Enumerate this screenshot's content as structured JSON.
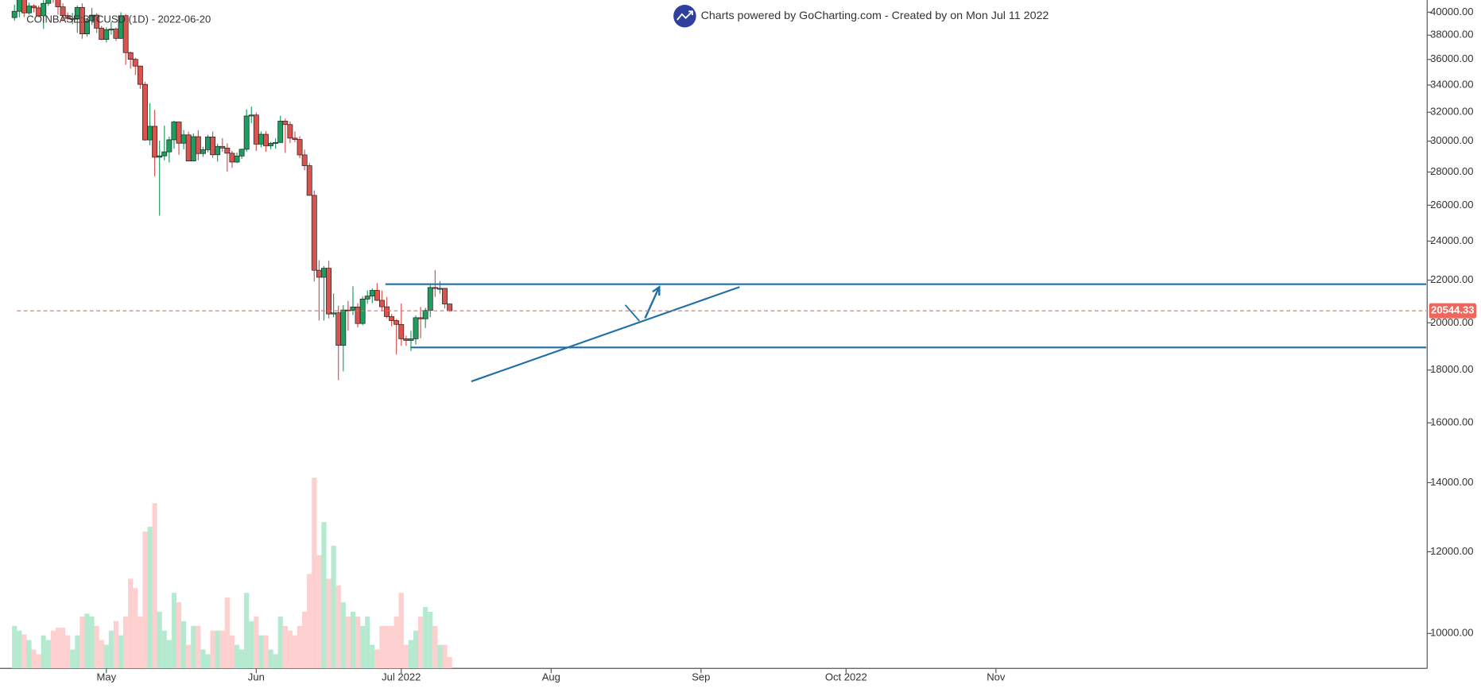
{
  "chart_data": {
    "type": "candlestick",
    "title": "Charts powered by GoCharting.com - Created by  on Mon Jul 11 2022",
    "subtitle": "COINBASE:BTCUSD (1D) - 2022-06-20",
    "up_color": "#1d9e60",
    "down_color": "#d9534f",
    "volume_up_color": "#b5ead0",
    "volume_down_color": "#fdcfcf",
    "log_scale": true,
    "ylim": [
      9250,
      41100
    ],
    "yticks": [
      {
        "value": 10000,
        "label": "10000.00"
      },
      {
        "value": 12000,
        "label": "12000.00"
      },
      {
        "value": 14000,
        "label": "14000.00"
      },
      {
        "value": 16000,
        "label": "16000.00"
      },
      {
        "value": 18000,
        "label": "18000.00"
      },
      {
        "value": 20000,
        "label": "20000.00"
      },
      {
        "value": 22000,
        "label": "22000.00"
      },
      {
        "value": 24000,
        "label": "24000.00"
      },
      {
        "value": 26000,
        "label": "26000.00"
      },
      {
        "value": 28000,
        "label": "28000.00"
      },
      {
        "value": 30000,
        "label": "30000.00"
      },
      {
        "value": 32000,
        "label": "32000.00"
      },
      {
        "value": 34000,
        "label": "34000.00"
      },
      {
        "value": 36000,
        "label": "36000.00"
      },
      {
        "value": 38000,
        "label": "38000.00"
      },
      {
        "value": 40000,
        "label": "40000.00"
      }
    ],
    "xlim": [
      "2022-04-09",
      "2023-01-29"
    ],
    "xticks": [
      {
        "value": "2022-05-01",
        "label": "May"
      },
      {
        "value": "2022-06-01",
        "label": "Jun"
      },
      {
        "value": "2022-07-01",
        "label": "Jul 2022"
      },
      {
        "value": "2022-08-01",
        "label": "Aug"
      },
      {
        "value": "2022-09-01",
        "label": "Sep"
      },
      {
        "value": "2022-10-01",
        "label": "Oct 2022"
      },
      {
        "value": "2022-11-01",
        "label": "Nov"
      }
    ],
    "last_price": 20544.33,
    "x": [
      "2022-04-12",
      "2022-04-13",
      "2022-04-14",
      "2022-04-15",
      "2022-04-16",
      "2022-04-17",
      "2022-04-18",
      "2022-04-19",
      "2022-04-20",
      "2022-04-21",
      "2022-04-22",
      "2022-04-23",
      "2022-04-24",
      "2022-04-25",
      "2022-04-26",
      "2022-04-27",
      "2022-04-28",
      "2022-04-29",
      "2022-04-30",
      "2022-05-01",
      "2022-05-02",
      "2022-05-03",
      "2022-05-04",
      "2022-05-05",
      "2022-05-06",
      "2022-05-07",
      "2022-05-08",
      "2022-05-09",
      "2022-05-10",
      "2022-05-11",
      "2022-05-12",
      "2022-05-13",
      "2022-05-14",
      "2022-05-15",
      "2022-05-16",
      "2022-05-17",
      "2022-05-18",
      "2022-05-19",
      "2022-05-20",
      "2022-05-21",
      "2022-05-22",
      "2022-05-23",
      "2022-05-24",
      "2022-05-25",
      "2022-05-26",
      "2022-05-27",
      "2022-05-28",
      "2022-05-29",
      "2022-05-30",
      "2022-05-31",
      "2022-06-01",
      "2022-06-02",
      "2022-06-03",
      "2022-06-04",
      "2022-06-05",
      "2022-06-06",
      "2022-06-07",
      "2022-06-08",
      "2022-06-09",
      "2022-06-10",
      "2022-06-11",
      "2022-06-12",
      "2022-06-13",
      "2022-06-14",
      "2022-06-15",
      "2022-06-16",
      "2022-06-17",
      "2022-06-18",
      "2022-06-19",
      "2022-06-20",
      "2022-06-21",
      "2022-06-22",
      "2022-06-23",
      "2022-06-24",
      "2022-06-25",
      "2022-06-26",
      "2022-06-27",
      "2022-06-28",
      "2022-06-29",
      "2022-06-30",
      "2022-07-01",
      "2022-07-02",
      "2022-07-03",
      "2022-07-04",
      "2022-07-05",
      "2022-07-06",
      "2022-07-07",
      "2022-07-08",
      "2022-07-09",
      "2022-07-10",
      "2022-07-11"
    ],
    "open": [
      39520,
      40080,
      41150,
      39940,
      40550,
      40390,
      39680,
      40800,
      41500,
      41370,
      40480,
      39700,
      39450,
      39450,
      40430,
      38110,
      39240,
      39740,
      38600,
      37640,
      38470,
      38520,
      37730,
      39690,
      36550,
      36010,
      35470,
      34050,
      30080,
      31010,
      28940,
      29030,
      29290,
      30090,
      31310,
      29860,
      30420,
      28700,
      30300,
      29180,
      29430,
      30280,
      29100,
      29650,
      29540,
      29200,
      28630,
      29020,
      29460,
      31730,
      31800,
      29800,
      30460,
      29690,
      29850,
      29910,
      31370,
      31130,
      30200,
      30110,
      29090,
      28400,
      26580,
      22490,
      22140,
      22590,
      20400,
      20450,
      19020,
      20580,
      20560,
      20720,
      19970,
      21090,
      21230,
      21500,
      21030,
      20730,
      20280,
      20100,
      19930,
      19300,
      19230,
      19300,
      20230,
      20180,
      20560,
      21640,
      21600,
      21600,
      20860
    ],
    "high": [
      40690,
      41550,
      41500,
      40870,
      40720,
      40600,
      41100,
      41760,
      42200,
      42980,
      40800,
      39990,
      39940,
      40600,
      40800,
      39470,
      40380,
      39920,
      38800,
      38680,
      39160,
      38650,
      40000,
      39840,
      36640,
      36130,
      35500,
      34240,
      32650,
      32170,
      30030,
      31050,
      30300,
      31400,
      31320,
      30750,
      30640,
      30520,
      30740,
      29620,
      30440,
      30650,
      29830,
      30200,
      29850,
      29360,
      29250,
      29500,
      32200,
      32400,
      31980,
      30650,
      30680,
      29950,
      30180,
      31750,
      31550,
      31340,
      30650,
      30330,
      29440,
      28560,
      26880,
      23000,
      22700,
      22970,
      21350,
      20780,
      20810,
      21000,
      21700,
      20890,
      21220,
      21500,
      21600,
      21850,
      21500,
      21190,
      20400,
      20180,
      20880,
      19430,
      19650,
      20330,
      20720,
      20680,
      21840,
      22500,
      21940,
      21620,
      20880
    ],
    "low": [
      39250,
      39550,
      39560,
      39770,
      39990,
      39560,
      38540,
      40570,
      40850,
      39780,
      39190,
      39300,
      38950,
      38200,
      37700,
      37880,
      38870,
      38180,
      37580,
      37390,
      38050,
      37510,
      37680,
      35570,
      35270,
      34770,
      33710,
      30030,
      29730,
      27740,
      25400,
      28740,
      28600,
      29500,
      29100,
      29460,
      28700,
      28690,
      28740,
      28960,
      29260,
      28900,
      28660,
      29300,
      28030,
      28260,
      28560,
      28840,
      29300,
      31230,
      29350,
      29600,
      29300,
      29470,
      29500,
      29890,
      29220,
      29870,
      29930,
      28880,
      28110,
      26560,
      21930,
      20100,
      20100,
      20200,
      20250,
      17600,
      17950,
      19650,
      20350,
      19800,
      19900,
      20870,
      20900,
      21000,
      20520,
      20200,
      19850,
      18630,
      19000,
      19000,
      18780,
      19050,
      19320,
      19770,
      20260,
      21190,
      21350,
      20650,
      20500
    ],
    "close": [
      40080,
      41150,
      39940,
      40550,
      40390,
      39680,
      40800,
      41500,
      41370,
      40480,
      39700,
      39450,
      39450,
      40430,
      38110,
      39240,
      39740,
      38600,
      37640,
      38470,
      38520,
      37730,
      39690,
      36550,
      36010,
      35470,
      34050,
      30080,
      31010,
      28940,
      29030,
      29290,
      30090,
      31310,
      29860,
      30420,
      28700,
      30300,
      29180,
      29430,
      30280,
      29100,
      29650,
      29540,
      29200,
      28630,
      29020,
      29460,
      31730,
      31800,
      29800,
      30460,
      29690,
      29850,
      29910,
      31370,
      31130,
      30200,
      30110,
      29090,
      28400,
      26580,
      22490,
      22140,
      22590,
      20400,
      20450,
      19020,
      20580,
      20560,
      20720,
      19970,
      21090,
      21230,
      21500,
      21030,
      20730,
      20280,
      20100,
      19930,
      19300,
      19230,
      19300,
      20230,
      20180,
      20560,
      21640,
      21600,
      21600,
      20860,
      20544.33
    ],
    "volume": [
      45,
      40,
      36,
      30,
      20,
      15,
      35,
      30,
      40,
      43,
      43,
      35,
      20,
      35,
      55,
      58,
      55,
      45,
      30,
      25,
      40,
      50,
      35,
      55,
      95,
      85,
      55,
      145,
      150,
      175,
      60,
      40,
      30,
      80,
      70,
      50,
      25,
      45,
      45,
      20,
      15,
      40,
      40,
      40,
      75,
      35,
      25,
      20,
      80,
      50,
      55,
      35,
      35,
      20,
      15,
      55,
      45,
      40,
      35,
      45,
      60,
      100,
      202,
      120,
      155,
      95,
      130,
      88,
      70,
      55,
      60,
      55,
      45,
      55,
      25,
      20,
      45,
      45,
      45,
      55,
      80,
      25,
      30,
      40,
      55,
      65,
      60,
      45,
      25,
      25,
      12
    ]
  }
}
